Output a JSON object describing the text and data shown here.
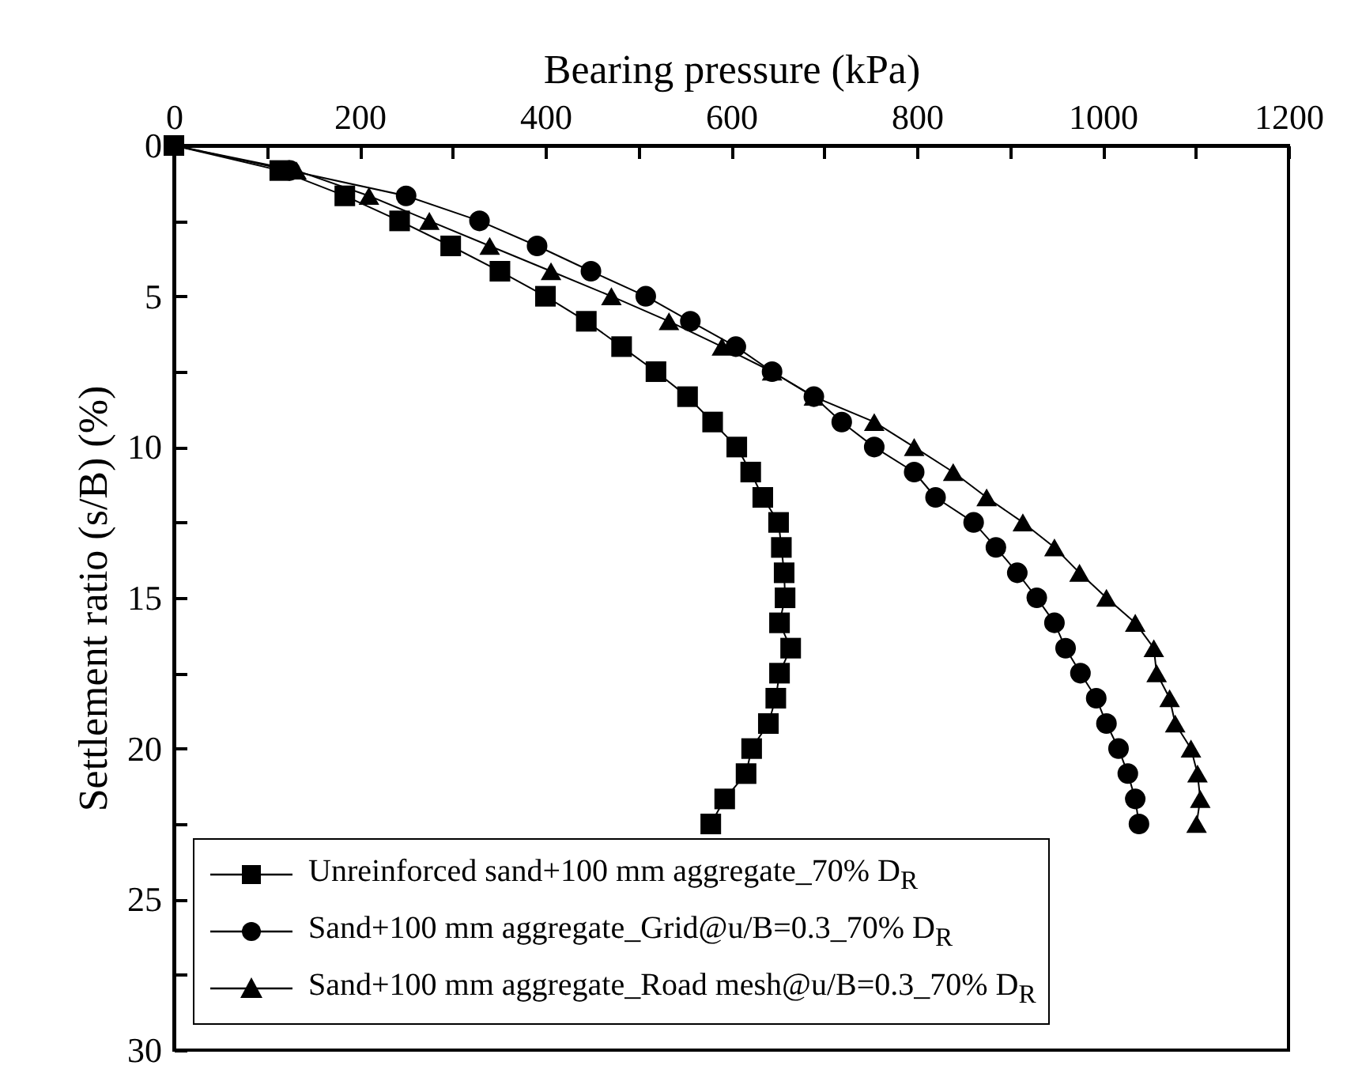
{
  "chart_data": {
    "type": "line",
    "xlabel": "Bearing pressure (kPa)",
    "ylabel": "Settlement ratio (s/B) (%)",
    "xlim": [
      0,
      1200
    ],
    "xticks": [
      0,
      {
        "value": 100,
        "label": null
      },
      200,
      {
        "value": 300,
        "label": null
      },
      400,
      {
        "value": 500,
        "label": null
      },
      600,
      {
        "value": 700,
        "label": null
      },
      800,
      {
        "value": 900,
        "label": null
      },
      1000,
      {
        "value": 1100,
        "label": null
      },
      1200
    ],
    "ylim": [
      30,
      0
    ],
    "yticks": [
      0,
      {
        "value": 2.5,
        "label": null
      },
      5,
      {
        "value": 7.5,
        "label": null
      },
      10,
      {
        "value": 12.5,
        "label": null
      },
      15,
      {
        "value": 17.5,
        "label": null
      },
      20,
      {
        "value": 22.5,
        "label": null
      },
      25,
      {
        "value": 27.5,
        "label": null
      },
      30
    ],
    "grid": false,
    "legend": "bottom",
    "line_style": "solid",
    "series": [
      {
        "name": "Unreinforced sand+100 mm aggregate_70% D$_{R}$",
        "color": "#000000",
        "marker": "square",
        "x": [
          0,
          114,
          184,
          243,
          298,
          351,
          400,
          444,
          482,
          519,
          553,
          580,
          606,
          621,
          634,
          651,
          654,
          657,
          658,
          652,
          664,
          652,
          648,
          640,
          622,
          616,
          593,
          578
        ],
        "values": [
          0,
          0.83,
          1.67,
          2.5,
          3.33,
          4.17,
          5,
          5.83,
          6.67,
          7.5,
          8.33,
          9.17,
          10,
          10.83,
          11.67,
          12.5,
          13.33,
          14.17,
          15,
          15.83,
          16.67,
          17.5,
          18.33,
          19.17,
          20,
          20.83,
          21.67,
          22.5
        ]
      },
      {
        "name": "Sand+100 mm aggregate_Grid@u/B=0.3_70% D$_{R}$",
        "color": "#000000",
        "marker": "circle",
        "x": [
          0,
          125,
          250,
          329,
          391,
          449,
          508,
          556,
          605,
          644,
          689,
          719,
          754,
          797,
          820,
          861,
          885,
          908,
          929,
          948,
          960,
          976,
          993,
          1004,
          1017,
          1027,
          1035,
          1039
        ],
        "values": [
          0,
          0.83,
          1.67,
          2.5,
          3.33,
          4.17,
          5,
          5.83,
          6.67,
          7.5,
          8.33,
          9.17,
          10,
          10.83,
          11.67,
          12.5,
          13.33,
          14.17,
          15,
          15.83,
          16.67,
          17.5,
          18.33,
          19.17,
          20,
          20.83,
          21.67,
          22.5
        ]
      },
      {
        "name": "Sand+100 mm aggregate_Road mesh@u/B=0.3_70% D$_{R}$",
        "color": "#000000",
        "marker": "triangle",
        "x": [
          0,
          132,
          210,
          275,
          340,
          406,
          471,
          533,
          590,
          644,
          689,
          754,
          797,
          839,
          875,
          914,
          948,
          975,
          1004,
          1035,
          1055,
          1058,
          1072,
          1078,
          1095,
          1102,
          1105,
          1101
        ],
        "values": [
          0,
          0.83,
          1.67,
          2.5,
          3.33,
          4.17,
          5,
          5.83,
          6.67,
          7.5,
          8.33,
          9.17,
          10,
          10.83,
          11.67,
          12.5,
          13.33,
          14.17,
          15,
          15.83,
          16.67,
          17.5,
          18.33,
          19.17,
          20,
          20.83,
          21.67,
          22.5
        ]
      }
    ]
  }
}
